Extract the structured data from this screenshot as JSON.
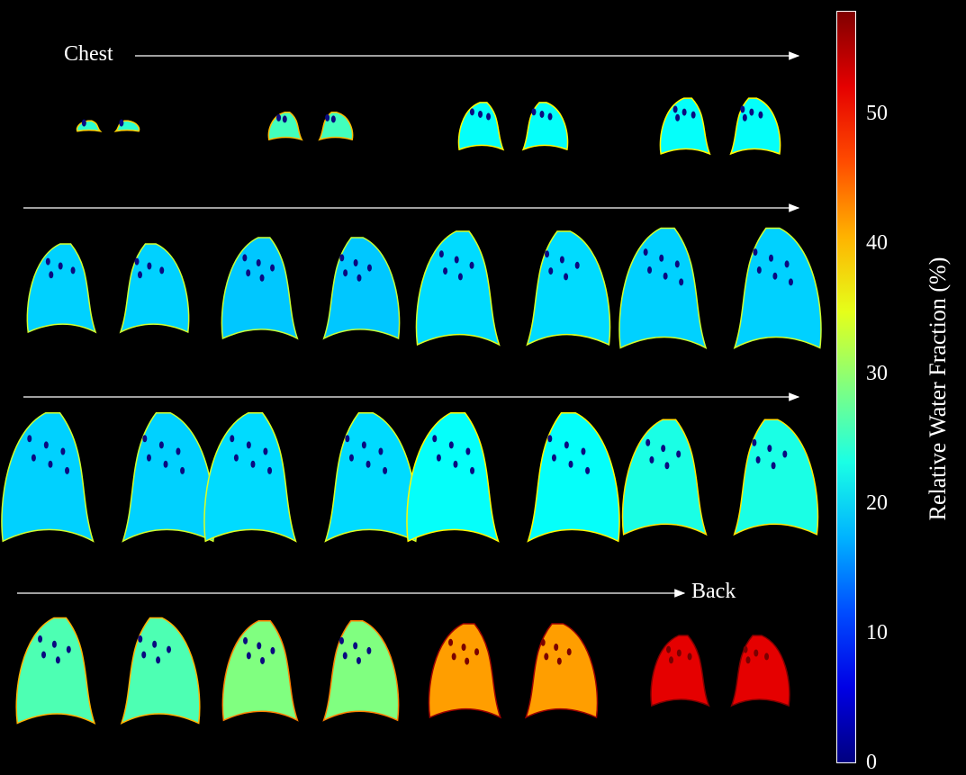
{
  "labels": {
    "start": "Chest",
    "end": "Back"
  },
  "colorbar": {
    "title": "Relative Water Fraction (%)",
    "ticks": [
      "50",
      "40",
      "30",
      "20",
      "10",
      "0"
    ],
    "range": [
      0,
      58
    ],
    "colormap": "jet"
  },
  "grid": {
    "rows": 4,
    "cols": 4,
    "slice_order": "chest-to-back",
    "rows_data": [
      [
        {
          "fill": 0.12,
          "level": 0.42
        },
        {
          "fill": 0.32,
          "level": 0.44
        },
        {
          "fill": 0.55,
          "level": 0.38
        },
        {
          "fill": 0.65,
          "level": 0.38
        }
      ],
      [
        {
          "fill": 0.7,
          "level": 0.33
        },
        {
          "fill": 0.8,
          "level": 0.32
        },
        {
          "fill": 0.9,
          "level": 0.34
        },
        {
          "fill": 0.95,
          "level": 0.33
        }
      ],
      [
        {
          "fill": 0.95,
          "level": 0.33
        },
        {
          "fill": 0.95,
          "level": 0.34
        },
        {
          "fill": 0.95,
          "level": 0.38
        },
        {
          "fill": 0.85,
          "level": 0.4
        }
      ],
      [
        {
          "fill": 0.9,
          "level": 0.45
        },
        {
          "fill": 0.85,
          "level": 0.5
        },
        {
          "fill": 0.8,
          "level": 0.72
        },
        {
          "fill": 0.6,
          "level": 0.9
        }
      ]
    ]
  }
}
